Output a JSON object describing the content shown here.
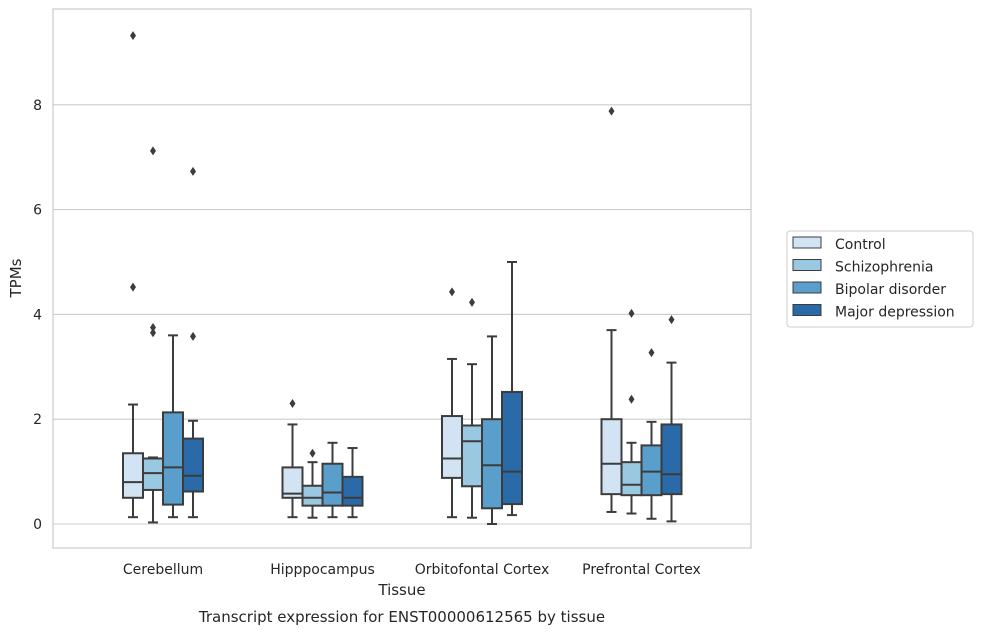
{
  "chart_data": {
    "type": "box",
    "title": "Transcript expression for ENST00000612565 by tissue",
    "xlabel": "Tissue",
    "ylabel": "TPMs",
    "ylim": [
      -0.45,
      9.7
    ],
    "yticks": [
      0,
      2,
      4,
      6,
      8
    ],
    "grid": "horizontal",
    "legend_position": "right",
    "categories": [
      "Cerebellum",
      "Hipppocampus",
      "Orbitofontal Cortex",
      "Prefrontal Cortex"
    ],
    "series": [
      {
        "name": "Control",
        "color": "#d2e3f3",
        "boxes": [
          {
            "whislo": 0.13,
            "q1": 0.5,
            "med": 0.8,
            "q3": 1.35,
            "whishi": 2.28,
            "fliers": [
              9.32,
              4.52
            ]
          },
          {
            "whislo": 0.13,
            "q1": 0.5,
            "med": 0.58,
            "q3": 1.08,
            "whishi": 1.9,
            "fliers": [
              2.3
            ]
          },
          {
            "whislo": 0.13,
            "q1": 0.88,
            "med": 1.25,
            "q3": 2.06,
            "whishi": 3.15,
            "fliers": [
              4.43
            ]
          },
          {
            "whislo": 0.23,
            "q1": 0.57,
            "med": 1.15,
            "q3": 2.0,
            "whishi": 3.7,
            "fliers": [
              7.88
            ]
          }
        ]
      },
      {
        "name": "Schizophrenia",
        "color": "#9ac8e0",
        "boxes": [
          {
            "whislo": 0.03,
            "q1": 0.65,
            "med": 0.97,
            "q3": 1.25,
            "whishi": 1.27,
            "fliers": [
              7.12,
              3.75,
              3.65
            ]
          },
          {
            "whislo": 0.12,
            "q1": 0.35,
            "med": 0.5,
            "q3": 0.73,
            "whishi": 1.18,
            "fliers": [
              1.35
            ]
          },
          {
            "whislo": 0.12,
            "q1": 0.72,
            "med": 1.58,
            "q3": 1.88,
            "whishi": 3.05,
            "fliers": [
              4.23
            ]
          },
          {
            "whislo": 0.2,
            "q1": 0.55,
            "med": 0.75,
            "q3": 1.18,
            "whishi": 1.55,
            "fliers": [
              4.02,
              2.38
            ]
          }
        ]
      },
      {
        "name": "Bipolar disorder",
        "color": "#5a9ecc",
        "boxes": [
          {
            "whislo": 0.13,
            "q1": 0.37,
            "med": 1.08,
            "q3": 2.13,
            "whishi": 3.6,
            "fliers": []
          },
          {
            "whislo": 0.13,
            "q1": 0.35,
            "med": 0.6,
            "q3": 1.15,
            "whishi": 1.55,
            "fliers": []
          },
          {
            "whislo": 0.0,
            "q1": 0.3,
            "med": 1.12,
            "q3": 2.0,
            "whishi": 3.58,
            "fliers": []
          },
          {
            "whislo": 0.1,
            "q1": 0.55,
            "med": 1.0,
            "q3": 1.5,
            "whishi": 1.95,
            "fliers": [
              3.27
            ]
          }
        ]
      },
      {
        "name": "Major depression",
        "color": "#2a6aa8",
        "boxes": [
          {
            "whislo": 0.13,
            "q1": 0.62,
            "med": 0.92,
            "q3": 1.63,
            "whishi": 1.97,
            "fliers": [
              6.73,
              3.58
            ]
          },
          {
            "whislo": 0.13,
            "q1": 0.35,
            "med": 0.5,
            "q3": 0.9,
            "whishi": 1.45,
            "fliers": []
          },
          {
            "whislo": 0.17,
            "q1": 0.38,
            "med": 1.0,
            "q3": 2.52,
            "whishi": 5.0,
            "fliers": []
          },
          {
            "whislo": 0.05,
            "q1": 0.57,
            "med": 0.95,
            "q3": 1.9,
            "whishi": 3.08,
            "fliers": [
              3.9
            ]
          }
        ]
      }
    ]
  }
}
